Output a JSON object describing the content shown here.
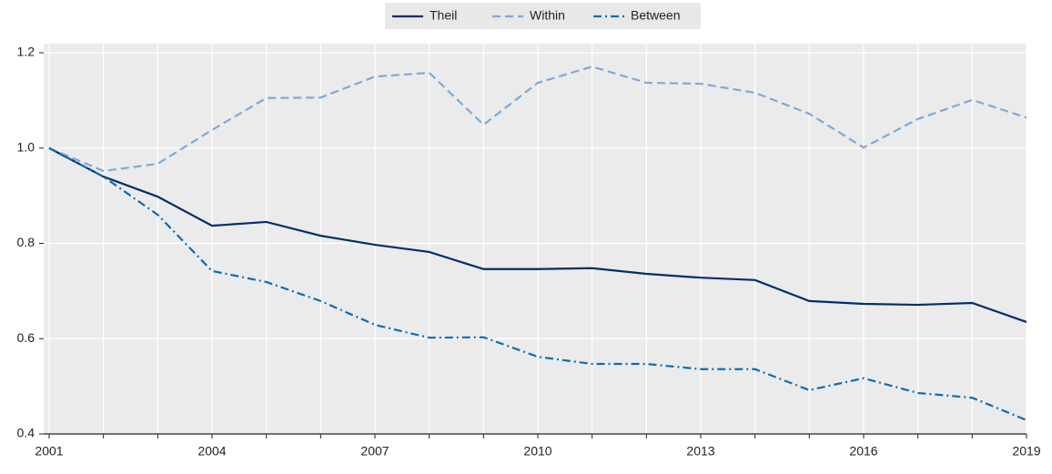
{
  "chart_data": {
    "type": "line",
    "x": [
      2001,
      2002,
      2003,
      2004,
      2005,
      2006,
      2007,
      2008,
      2009,
      2010,
      2011,
      2012,
      2013,
      2014,
      2015,
      2016,
      2017,
      2018,
      2019
    ],
    "series": [
      {
        "name": "Theil",
        "color": "#002f6c",
        "linestyle": "solid",
        "values": [
          1.0,
          0.94,
          0.898,
          0.837,
          0.845,
          0.816,
          0.797,
          0.782,
          0.746,
          0.746,
          0.748,
          0.736,
          0.728,
          0.723,
          0.679,
          0.673,
          0.671,
          0.675,
          0.635
        ]
      },
      {
        "name": "Within",
        "color": "#7fa8d9",
        "linestyle": "dashed",
        "values": [
          1.0,
          0.952,
          0.967,
          1.038,
          1.105,
          1.106,
          1.15,
          1.158,
          1.049,
          1.137,
          1.171,
          1.137,
          1.135,
          1.116,
          1.072,
          1.001,
          1.061,
          1.101,
          1.064
        ]
      },
      {
        "name": "Between",
        "color": "#0c6cb3",
        "linestyle": "dashdot",
        "values": [
          1.0,
          0.94,
          0.86,
          0.742,
          0.719,
          0.679,
          0.629,
          0.602,
          0.603,
          0.562,
          0.547,
          0.547,
          0.536,
          0.536,
          0.492,
          0.517,
          0.486,
          0.476,
          0.429
        ]
      }
    ],
    "xlim": [
      2001,
      2019
    ],
    "xticks": [
      2001,
      2004,
      2007,
      2010,
      2013,
      2016,
      2019
    ],
    "ylim": [
      0.4,
      1.2
    ],
    "yticks": [
      {
        "value": 0.4,
        "label": "0.4"
      },
      0.6,
      0.8,
      {
        "value": 1,
        "label": "1.0"
      },
      1.2
    ],
    "grid": true,
    "legend": "top"
  }
}
